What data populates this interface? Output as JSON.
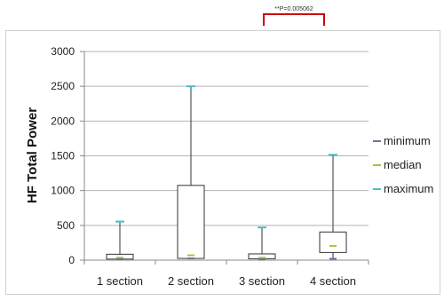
{
  "chart_data": {
    "type": "boxplot",
    "ylabel": "HF Total Power",
    "ylim": [
      0,
      3000
    ],
    "yticks": [
      0,
      500,
      1000,
      1500,
      2000,
      2500,
      3000
    ],
    "grid": true,
    "legend_position": "right",
    "categories": [
      "1 section",
      "2 section",
      "3 section",
      "4 section"
    ],
    "boxes": [
      {
        "category": "1 section",
        "min": 15,
        "q1": 15,
        "median": 35,
        "q3": 85,
        "max": 555
      },
      {
        "category": "2 section",
        "min": 25,
        "q1": 25,
        "median": 70,
        "q3": 1075,
        "max": 2500
      },
      {
        "category": "3 section",
        "min": 10,
        "q1": 20,
        "median": 35,
        "q3": 90,
        "max": 470
      },
      {
        "category": "4 section",
        "min": 20,
        "q1": 110,
        "median": 205,
        "q3": 405,
        "max": 1515
      }
    ],
    "legend": [
      {
        "label": "minimum",
        "color": "#6b6fa8"
      },
      {
        "label": "median",
        "color": "#9acd32"
      },
      {
        "label": "maximum",
        "color": "#3fc1c9"
      }
    ],
    "annotation": {
      "text": "**P=0.005062",
      "from_category": "3 section",
      "to_category": "4 section",
      "color": "#cc0000"
    }
  }
}
